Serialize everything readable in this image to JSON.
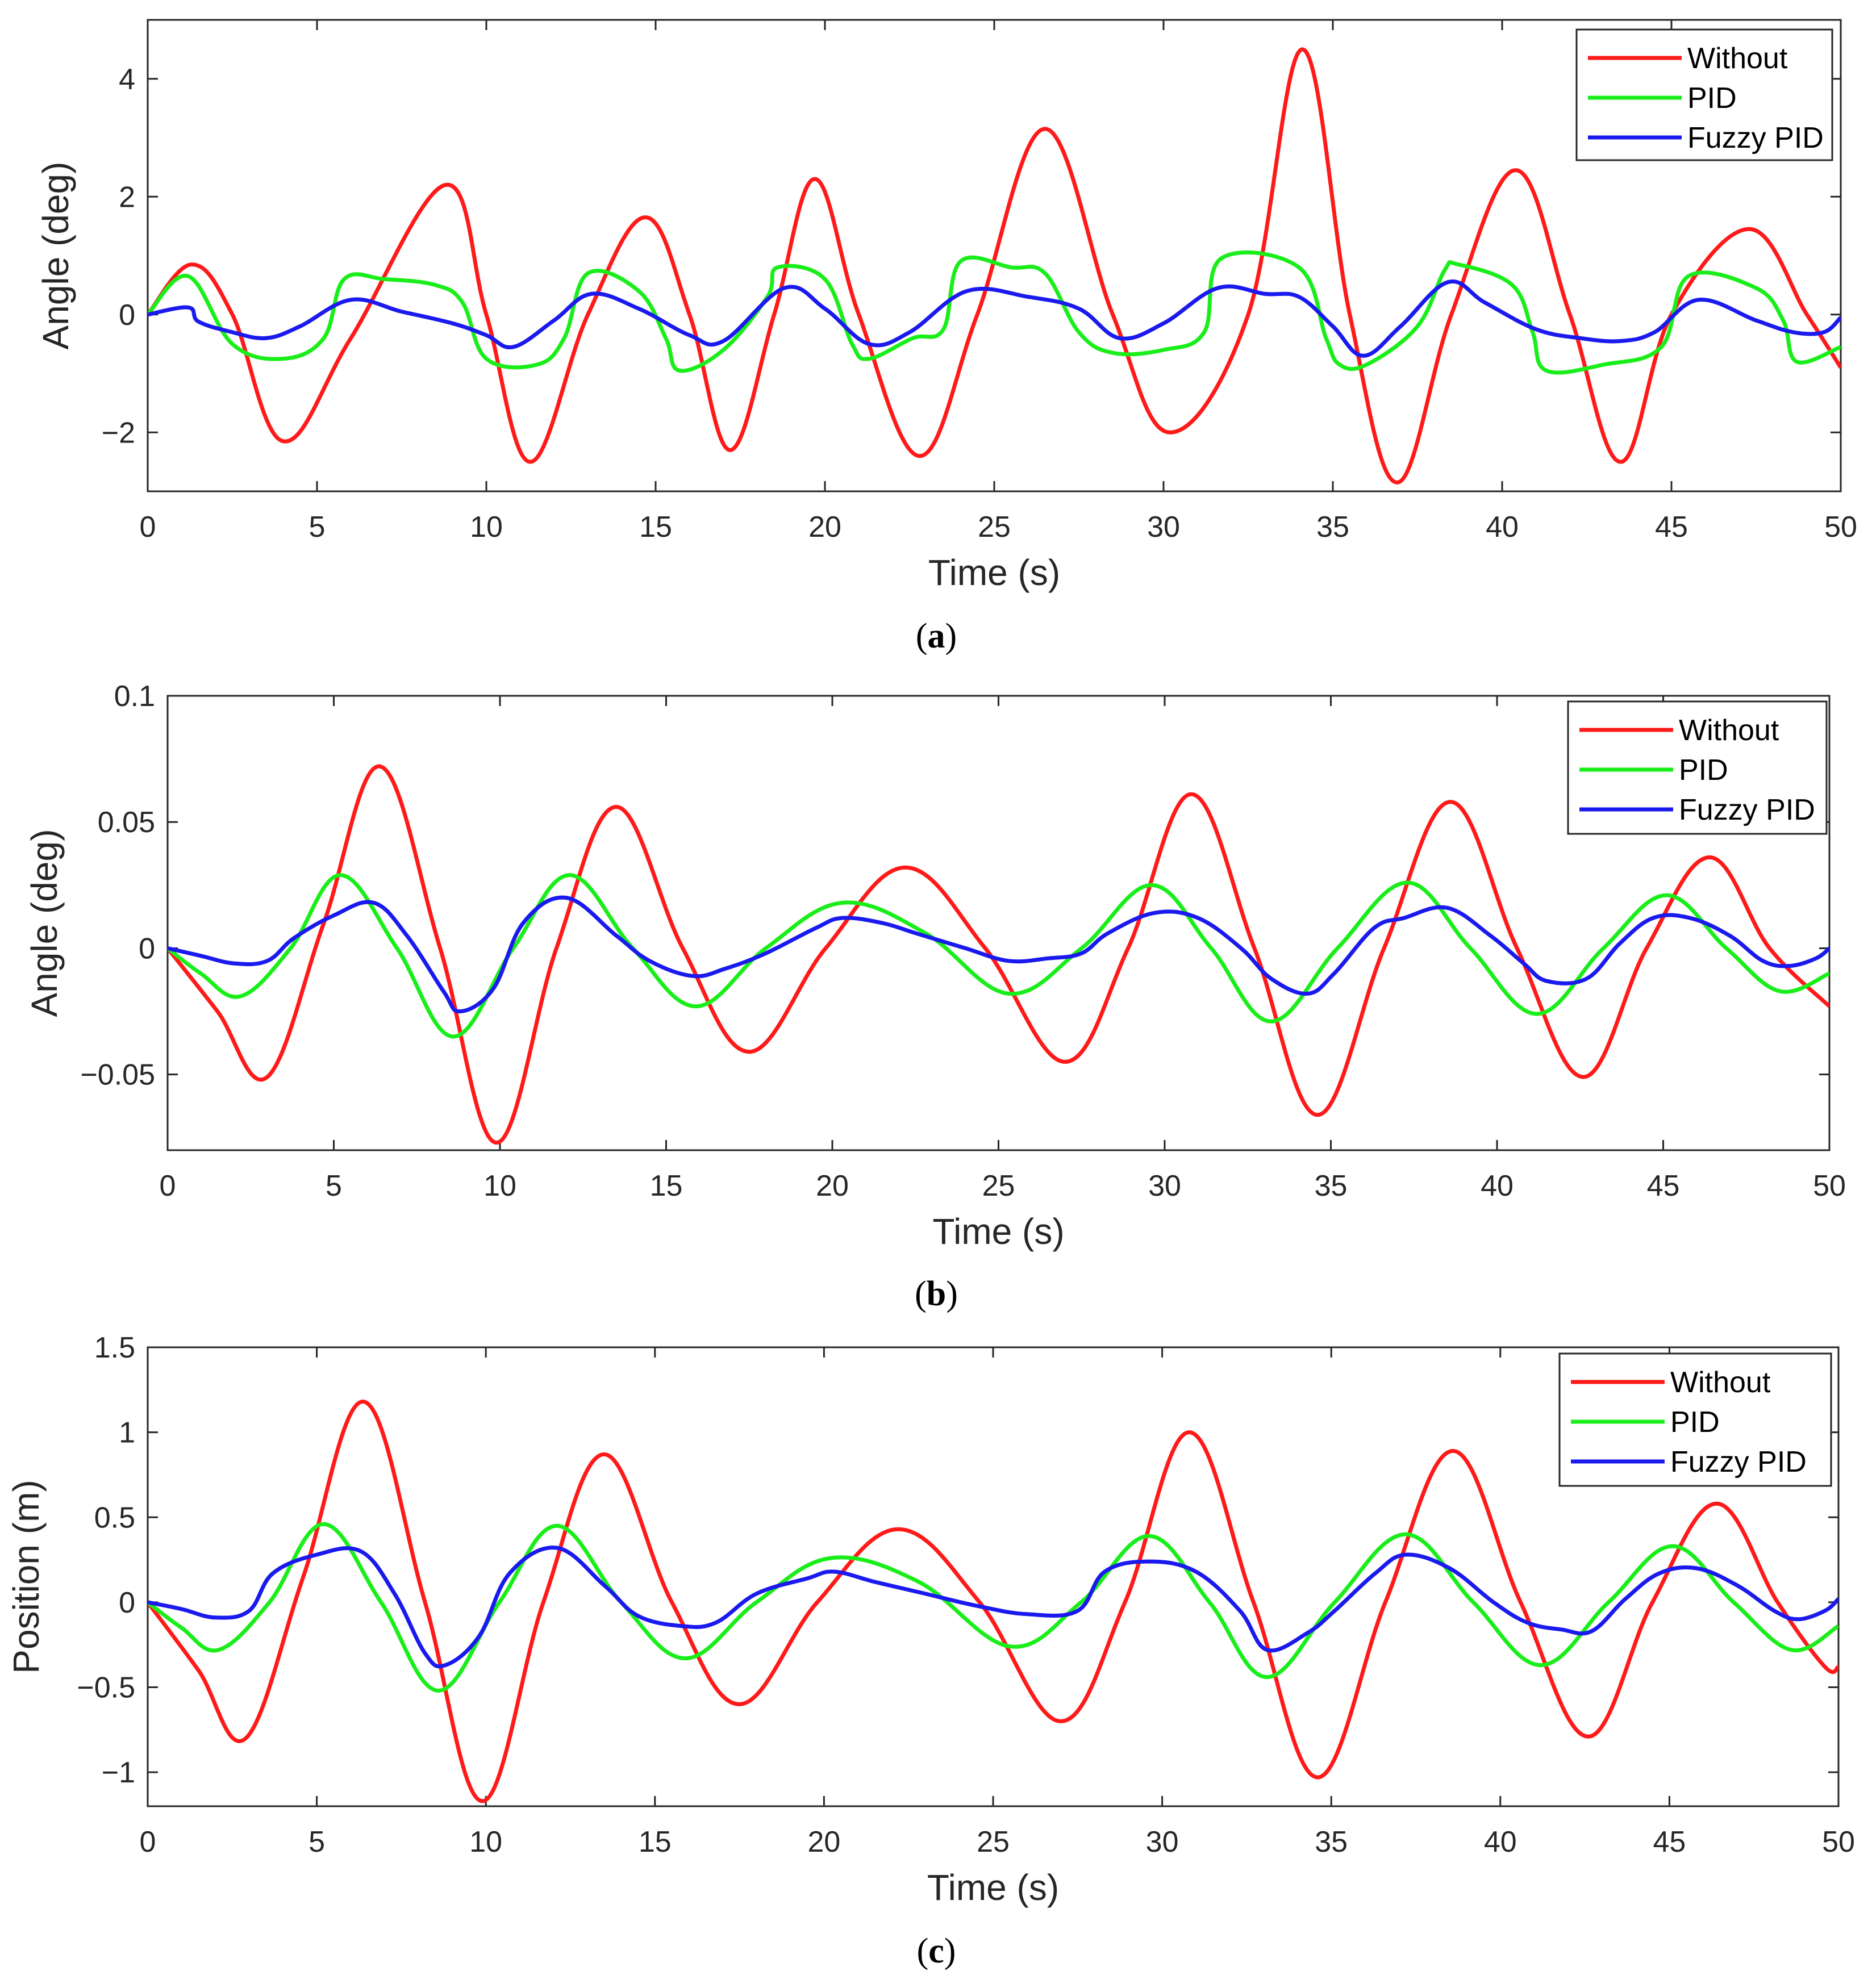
{
  "colors": {
    "Without": "#ff1a1a",
    "PID": "#1aee1a",
    "Fuzzy PID": "#1a1aee",
    "axis": "#262626"
  },
  "chart_data": [
    {
      "type": "line",
      "caption": {
        "label": "a"
      },
      "title": "",
      "xlabel": "Time (s)",
      "ylabel": "Angle (deg)",
      "xlim": [
        0,
        50
      ],
      "ylim": [
        -3,
        5
      ],
      "xticks": [
        0,
        5,
        10,
        15,
        20,
        25,
        30,
        35,
        40,
        45,
        50
      ],
      "yticks": [
        -2,
        0,
        2,
        4
      ],
      "ytick_labels": [
        "−2",
        "0",
        "2",
        "4"
      ],
      "legend": [
        "Without",
        "PID",
        "Fuzzy PID"
      ],
      "legend_position": "top-right",
      "series": [
        {
          "name": "Without",
          "x": [
            0,
            1.3,
            2.5,
            4,
            6,
            8.8,
            10,
            11.3,
            13,
            14.7,
            16,
            17.2,
            18.5,
            19.7,
            21,
            22.8,
            24.5,
            26.5,
            28.5,
            30.2,
            32.5,
            34.1,
            35.5,
            36.9,
            38.5,
            40.4,
            42,
            43.5,
            45,
            47.3,
            49,
            50
          ],
          "y": [
            0,
            0.85,
            0,
            -2.15,
            -0.4,
            2.2,
            0,
            -2.5,
            0,
            1.65,
            0,
            -2.3,
            0,
            2.3,
            0,
            -2.4,
            0,
            3.15,
            0,
            -2.0,
            0,
            4.5,
            0,
            -2.85,
            0,
            2.45,
            0,
            -2.5,
            0,
            1.45,
            0,
            -0.9
          ]
        },
        {
          "name": "PID",
          "x": [
            0,
            1.2,
            2.5,
            4,
            5.2,
            5.8,
            7,
            8.5,
            9.3,
            10,
            11.5,
            12.3,
            13,
            14.5,
            15.3,
            15.7,
            17,
            18.3,
            18.6,
            20,
            20.8,
            21.3,
            22.6,
            23.5,
            24,
            25.5,
            26.5,
            27.5,
            28.5,
            30,
            31.2,
            31.7,
            34,
            34.8,
            35.2,
            36,
            37.5,
            38.3,
            38.7,
            40.3,
            40.9,
            41.3,
            43,
            44.7,
            45.5,
            47.5,
            48.3,
            48.7,
            50
          ],
          "y": [
            0,
            0.65,
            -0.5,
            -0.75,
            -0.4,
            0.6,
            0.6,
            0.5,
            0.2,
            -0.75,
            -0.85,
            -0.4,
            0.7,
            0.4,
            -0.4,
            -0.95,
            -0.6,
            0.3,
            0.8,
            0.6,
            -0.5,
            -0.75,
            -0.4,
            -0.25,
            0.9,
            0.8,
            0.7,
            -0.3,
            -0.65,
            -0.6,
            -0.3,
            0.95,
            0.8,
            -0.4,
            -0.85,
            -0.85,
            -0.2,
            0.75,
            0.85,
            0.5,
            -0.3,
            -0.95,
            -0.85,
            -0.55,
            0.65,
            0.45,
            -0.1,
            -0.8,
            -0.55
          ]
        },
        {
          "name": "Fuzzy PID",
          "x": [
            0,
            1.2,
            1.5,
            2.5,
            3.5,
            4.5,
            6,
            7.5,
            9,
            10,
            10.8,
            12,
            13.1,
            14.5,
            16,
            17,
            18.8,
            20,
            21.3,
            22.5,
            24.2,
            26,
            27.5,
            28.7,
            30,
            31.6,
            33,
            34,
            35,
            35.9,
            37,
            38.4,
            39.5,
            41,
            42.3,
            43.5,
            44.5,
            45.8,
            47.5,
            48.6,
            49.5,
            50
          ],
          "y": [
            0,
            0.12,
            -0.12,
            -0.3,
            -0.4,
            -0.2,
            0.25,
            0.05,
            -0.15,
            -0.35,
            -0.55,
            -0.1,
            0.35,
            0.1,
            -0.35,
            -0.45,
            0.45,
            0.1,
            -0.5,
            -0.3,
            0.4,
            0.3,
            0.1,
            -0.4,
            -0.15,
            0.45,
            0.35,
            0.3,
            -0.2,
            -0.7,
            -0.2,
            0.55,
            0.2,
            -0.25,
            -0.4,
            -0.45,
            -0.3,
            0.25,
            -0.1,
            -0.3,
            -0.3,
            -0.05
          ]
        }
      ]
    },
    {
      "type": "line",
      "caption": {
        "label": "b"
      },
      "title": "",
      "xlabel": "Time (s)",
      "ylabel": "Angle (deg)",
      "xlim": [
        0,
        50
      ],
      "ylim": [
        -0.08,
        0.1
      ],
      "xticks": [
        0,
        5,
        10,
        15,
        20,
        25,
        30,
        35,
        40,
        45,
        50
      ],
      "yticks": [
        -0.05,
        0,
        0.05,
        0.1
      ],
      "ytick_labels": [
        "−0.05",
        "0",
        "0.05",
        "0.1"
      ],
      "legend": [
        "Without",
        "PID",
        "Fuzzy PID"
      ],
      "legend_position": "top-right",
      "series": [
        {
          "name": "Without",
          "x": [
            0,
            1.5,
            3,
            4.7,
            6.4,
            8.2,
            9.9,
            11.7,
            13.5,
            15.5,
            17.5,
            19.8,
            22.2,
            24.6,
            27,
            28.9,
            30.8,
            32.7,
            34.6,
            36.6,
            38.6,
            40.6,
            42.6,
            44.5,
            46.4,
            48.2,
            50
          ],
          "y": [
            0,
            -0.025,
            -0.051,
            0.01,
            0.072,
            0,
            -0.077,
            0,
            0.056,
            0,
            -0.041,
            0,
            0.032,
            0,
            -0.045,
            0,
            0.061,
            0,
            -0.066,
            0,
            0.058,
            0,
            -0.051,
            0,
            0.036,
            0,
            -0.023
          ]
        },
        {
          "name": "PID",
          "x": [
            0,
            1,
            2.2,
            3.7,
            5.2,
            6.9,
            8.6,
            10.4,
            12.1,
            14,
            15.9,
            18,
            20.3,
            22.8,
            25.3,
            27.5,
            29.6,
            31.4,
            33.2,
            35.2,
            37.3,
            39.2,
            41.2,
            43.2,
            45.1,
            46.9,
            48.5,
            50
          ],
          "y": [
            0,
            -0.01,
            -0.019,
            0,
            0.029,
            0,
            -0.035,
            0,
            0.029,
            0,
            -0.023,
            0,
            0.018,
            0.006,
            -0.018,
            0,
            0.025,
            0,
            -0.029,
            0,
            0.026,
            0,
            -0.026,
            0,
            0.021,
            0,
            -0.017,
            -0.01
          ]
        },
        {
          "name": "Fuzzy PID",
          "x": [
            0,
            1,
            2,
            3,
            3.8,
            5,
            6.2,
            7.2,
            8.3,
            8.8,
            9.8,
            10.7,
            12,
            13.5,
            14.5,
            15.8,
            16.8,
            18,
            19.5,
            20.3,
            21.5,
            22.5,
            24,
            25.3,
            26.5,
            27.5,
            28.3,
            29.7,
            31,
            32.3,
            33.2,
            34.3,
            35.1,
            36.3,
            37.2,
            38.5,
            39.8,
            40.8,
            41.5,
            42.7,
            43.7,
            44.7,
            45.8,
            47,
            48,
            48.8,
            49.6,
            50
          ],
          "y": [
            0,
            -0.003,
            -0.006,
            -0.005,
            0.004,
            0.013,
            0.018,
            0.005,
            -0.017,
            -0.025,
            -0.016,
            0.01,
            0.02,
            0.005,
            -0.005,
            -0.011,
            -0.008,
            -0.002,
            0.008,
            0.012,
            0.01,
            0.006,
            0,
            -0.005,
            -0.004,
            -0.002,
            0.006,
            0.014,
            0.012,
            0,
            -0.012,
            -0.018,
            -0.01,
            0.008,
            0.012,
            0.016,
            0.005,
            -0.006,
            -0.013,
            -0.012,
            0.002,
            0.012,
            0.012,
            0.005,
            -0.005,
            -0.007,
            -0.004,
            0
          ]
        }
      ]
    },
    {
      "type": "line",
      "caption": {
        "label": "c"
      },
      "title": "",
      "xlabel": "Time (s)",
      "ylabel": "Position (m)",
      "xlim": [
        0,
        50
      ],
      "ylim": [
        -1.2,
        1.5
      ],
      "xticks": [
        0,
        5,
        10,
        15,
        20,
        25,
        30,
        35,
        40,
        45,
        50
      ],
      "yticks": [
        -1,
        -0.5,
        0,
        0.5,
        1,
        1.5
      ],
      "ytick_labels": [
        "−1",
        "−0.5",
        "0",
        "0.5",
        "1",
        "1.5"
      ],
      "legend": [
        "Without",
        "PID",
        "Fuzzy PID"
      ],
      "legend_position": "top-right",
      "series": [
        {
          "name": "Without",
          "x": [
            0,
            1.5,
            2.9,
            4.6,
            6.4,
            8.2,
            9.9,
            11.7,
            13.5,
            15.5,
            17.5,
            19.8,
            22.2,
            24.6,
            27,
            28.9,
            30.8,
            32.7,
            34.6,
            36.6,
            38.6,
            40.6,
            42.6,
            44.5,
            46.4,
            48.2,
            49.6,
            50
          ],
          "y": [
            0,
            -0.4,
            -0.8,
            0.15,
            1.18,
            0,
            -1.17,
            0,
            0.87,
            0,
            -0.6,
            0,
            0.43,
            0,
            -0.7,
            0,
            1.0,
            0,
            -1.03,
            0,
            0.89,
            0,
            -0.79,
            0,
            0.58,
            0,
            -0.38,
            -0.38
          ]
        },
        {
          "name": "PID",
          "x": [
            0,
            1,
            2.1,
            3.6,
            5.2,
            6.9,
            8.6,
            10.4,
            12.1,
            14,
            15.9,
            18,
            20.2,
            22.8,
            25.5,
            27.6,
            29.6,
            31.4,
            33.1,
            35.1,
            37.2,
            39.2,
            41.2,
            43.2,
            45.1,
            46.9,
            48.6,
            50
          ],
          "y": [
            0,
            -0.15,
            -0.28,
            0,
            0.46,
            0,
            -0.52,
            0,
            0.45,
            0,
            -0.33,
            0,
            0.26,
            0.12,
            -0.26,
            0,
            0.39,
            0,
            -0.44,
            0,
            0.4,
            0,
            -0.37,
            0,
            0.33,
            0,
            -0.28,
            -0.14
          ]
        },
        {
          "name": "Fuzzy PID",
          "x": [
            0,
            1,
            2,
            3,
            3.7,
            5,
            6.3,
            7.3,
            8.2,
            8.8,
            9.8,
            10.7,
            12.1,
            13.5,
            14.5,
            15.8,
            16.8,
            18,
            19.5,
            20.3,
            21.5,
            23,
            24.5,
            26,
            27.5,
            28.3,
            29.6,
            31,
            32.3,
            33.1,
            34.3,
            35.1,
            36.3,
            37.2,
            38.5,
            39.8,
            40.8,
            41.8,
            42.7,
            43.7,
            44.7,
            45.8,
            47,
            48.1,
            48.8,
            49.6,
            50
          ],
          "y": [
            0,
            -0.04,
            -0.09,
            -0.05,
            0.17,
            0.28,
            0.3,
            0.05,
            -0.3,
            -0.37,
            -0.2,
            0.17,
            0.32,
            0.1,
            -0.08,
            -0.14,
            -0.12,
            0.05,
            0.14,
            0.18,
            0.12,
            0.05,
            -0.02,
            -0.07,
            -0.05,
            0.18,
            0.24,
            0.18,
            -0.05,
            -0.28,
            -0.18,
            -0.05,
            0.17,
            0.28,
            0.2,
            0,
            -0.12,
            -0.16,
            -0.17,
            0.02,
            0.17,
            0.2,
            0.1,
            -0.05,
            -0.1,
            -0.05,
            0.02
          ]
        }
      ]
    }
  ]
}
